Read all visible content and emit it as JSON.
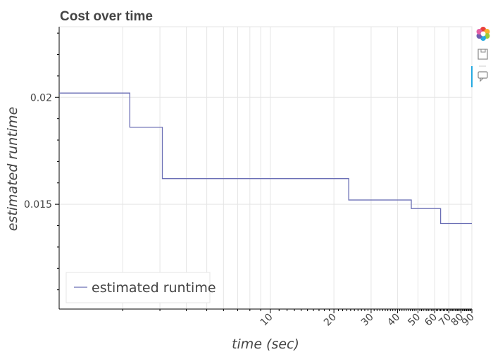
{
  "chart_data": {
    "type": "line",
    "line_shape": "step",
    "title": "Cost over time",
    "xlabel": "time (sec)",
    "ylabel": "estimated runtime",
    "x_scale": "log",
    "xlim": [
      1,
      90
    ],
    "ylim": [
      0.0101,
      0.0233
    ],
    "x_tick_labels": [
      "10",
      "20",
      "30",
      "40",
      "50",
      "60",
      "70",
      "80",
      "90"
    ],
    "y_tick_labels": [
      "0.015",
      "0.02"
    ],
    "grid": true,
    "legend": {
      "position": "bottom-left",
      "entries": [
        "estimated runtime"
      ]
    },
    "series": [
      {
        "name": "estimated runtime",
        "color": "#6b6fb5",
        "x": [
          1,
          2.16,
          3.08,
          23.5,
          46.5,
          64,
          90
        ],
        "y": [
          0.0202,
          0.0186,
          0.0162,
          0.0152,
          0.0148,
          0.0141,
          0.0141
        ]
      }
    ]
  },
  "toolbar": {
    "icons": [
      "bokeh-logo-icon",
      "save-icon",
      "hover-icon"
    ],
    "accent_color": "#26aae1"
  }
}
